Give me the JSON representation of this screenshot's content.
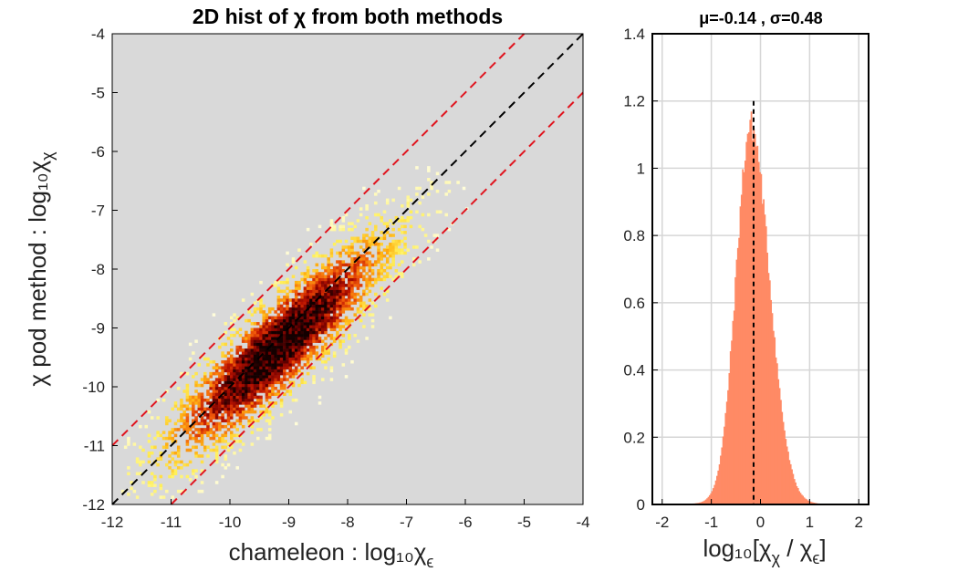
{
  "chart_data": [
    {
      "type": "heatmap",
      "title": "2D hist of χ from both methods",
      "xlabel": "chameleon : log₁₀χ",
      "xlabel_sub": "ϵ",
      "ylabel": "χ pod method : log₁₀χ",
      "ylabel_sub": "χ",
      "xlim": [
        -12,
        -4
      ],
      "ylim": [
        -12,
        -4
      ],
      "xticks": [
        "-12",
        "-11",
        "-10",
        "-9",
        "-8",
        "-7",
        "-6",
        "-5",
        "-4"
      ],
      "yticks": [
        "-12",
        "-11",
        "-10",
        "-9",
        "-8",
        "-7",
        "-6",
        "-5",
        "-4"
      ],
      "background_color": "#d9d9d9",
      "colormap": "hot",
      "density": {
        "ridge": "y = x - 0.14",
        "center": [
          -9.2,
          -9.35
        ],
        "spread_along": 1.6,
        "spread_across": 0.38
      },
      "lines": [
        {
          "style": "dashed",
          "color": "#000000",
          "slope": 1,
          "intercept": 0
        },
        {
          "style": "dashed",
          "color": "#e0141e",
          "slope": 1,
          "intercept": 1
        },
        {
          "style": "dashed",
          "color": "#e0141e",
          "slope": 1,
          "intercept": -1
        }
      ]
    },
    {
      "type": "bar",
      "title": "μ=-0.14 , σ=0.48",
      "xlabel": "log₁₀[χ",
      "xlabel_sub1": "χ",
      "xlabel_mid": " / χ",
      "xlabel_sub2": "ϵ",
      "xlabel_end": "]",
      "xlim": [
        -2.2,
        2.2
      ],
      "ylim": [
        0,
        1.4
      ],
      "xticks": [
        "-2",
        "-1",
        "0",
        "1",
        "2"
      ],
      "yticks": [
        "0",
        "0.2",
        "0.4",
        "0.6",
        "0.8",
        "1",
        "1.2",
        "1.4"
      ],
      "grid": true,
      "bar_color": "#ff8a65",
      "distribution": {
        "peak_x": -0.2,
        "peak_y": 1.1,
        "sigma_left": 0.3,
        "sigma_right": 0.38,
        "tail": 0.05
      },
      "mean_line": {
        "x": -0.14,
        "y_top": 1.2,
        "style": "dashed",
        "color": "#000000"
      }
    }
  ]
}
